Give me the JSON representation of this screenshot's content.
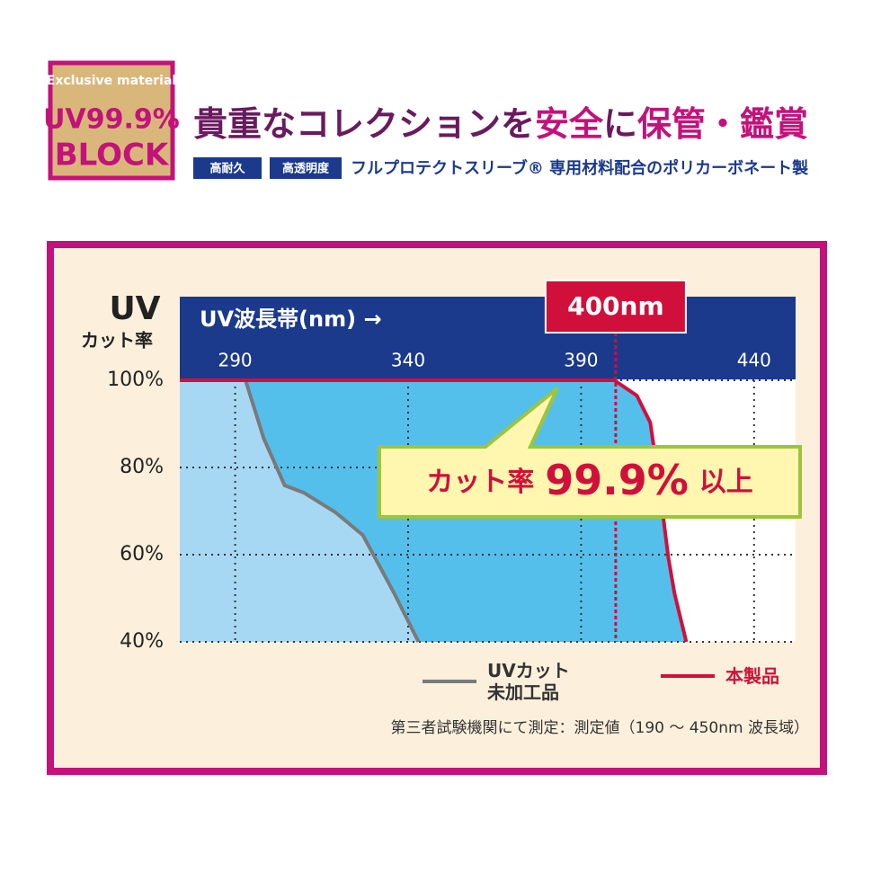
{
  "badge": {
    "top": "Exclusive material",
    "middle": "UV99.9%",
    "bottom": "BLOCK"
  },
  "header": {
    "title_parts": [
      {
        "text": "貴重なコレクションを",
        "color": "#6a1a5e"
      },
      {
        "text": "安全",
        "color": "#c3127c"
      },
      {
        "text": "に",
        "color": "#6a1a5e"
      },
      {
        "text": "保管・鑑賞",
        "color": "#c3127c"
      }
    ],
    "tags": [
      "高耐久",
      "高透明度"
    ],
    "subtitle": "フルプロテクトスリーブ® 専用材料配合のポリカーボネート製"
  },
  "chart_data": {
    "type": "line",
    "x_label": "UV波長帯(nm) →",
    "y_label": [
      "UV",
      "カット率"
    ],
    "xlim": [
      274,
      452
    ],
    "xticks": [
      290,
      340,
      390,
      440
    ],
    "ylim": [
      40,
      100
    ],
    "yticks": [
      {
        "value": 40,
        "label": "40%"
      },
      {
        "value": 60,
        "label": "60%"
      },
      {
        "value": 80,
        "label": "80%"
      },
      {
        "value": 100,
        "label": "100%"
      }
    ],
    "grid": true,
    "series": [
      {
        "name": "UVカット未加工品",
        "color": "#7a7a7a",
        "fill": "#a6d8f4",
        "x": [
          274,
          293,
          298.3,
          304.3,
          309.9,
          319,
          326.9,
          336,
          343
        ],
        "values": [
          100,
          100,
          86.6,
          75.9,
          74.2,
          69.7,
          64.5,
          51.1,
          40
        ]
      },
      {
        "name": "本製品",
        "color": "#d0103a",
        "fill": "#55bfec",
        "x": [
          274,
          399.6,
          406.1,
          410,
          412.6,
          415.2,
          417,
          420.4
        ],
        "values": [
          100,
          100,
          96.5,
          90.3,
          75.9,
          59.4,
          51.1,
          40
        ]
      }
    ],
    "marker": {
      "value": 400,
      "label": "400nm"
    },
    "callout": {
      "prefix": "カット率",
      "main": "99.9%",
      "suffix": "以上"
    },
    "note": "第三者試験機関にて測定：測定値（190 〜 450nm 波長域）"
  }
}
